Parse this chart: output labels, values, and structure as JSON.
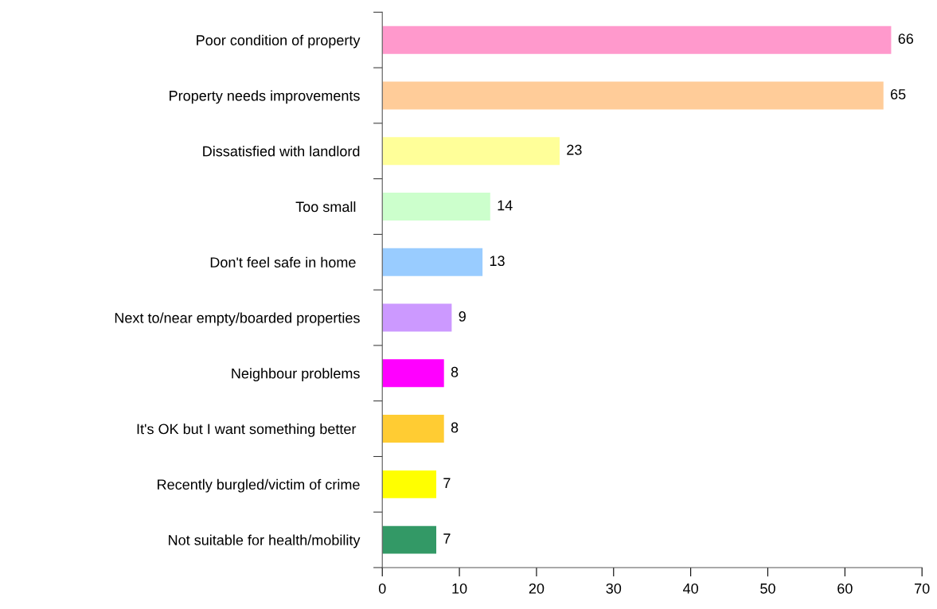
{
  "chart_data": {
    "type": "bar",
    "orientation": "horizontal",
    "categories": [
      "Poor condition of property",
      "Property needs improvements",
      "Dissatisfied with landlord",
      "Too small ",
      "Don't feel safe in home ",
      "Next to/near empty/boarded properties",
      "Neighbour problems",
      "It's OK but I want something better ",
      "Recently burgled/victim of crime",
      "Not suitable for health/mobility"
    ],
    "values": [
      66,
      65,
      23,
      14,
      13,
      9,
      8,
      8,
      7,
      7
    ],
    "colors": [
      "#ff99cc",
      "#ffcc99",
      "#ffff99",
      "#ccffcc",
      "#99ccff",
      "#cc99ff",
      "#ff00ff",
      "#ffcc33",
      "#ffff00",
      "#339966"
    ],
    "xlim": [
      0,
      70
    ],
    "xticks": [
      0,
      10,
      20,
      30,
      40,
      50,
      60,
      70
    ],
    "data_labels": true,
    "grid": false,
    "legend": false
  }
}
